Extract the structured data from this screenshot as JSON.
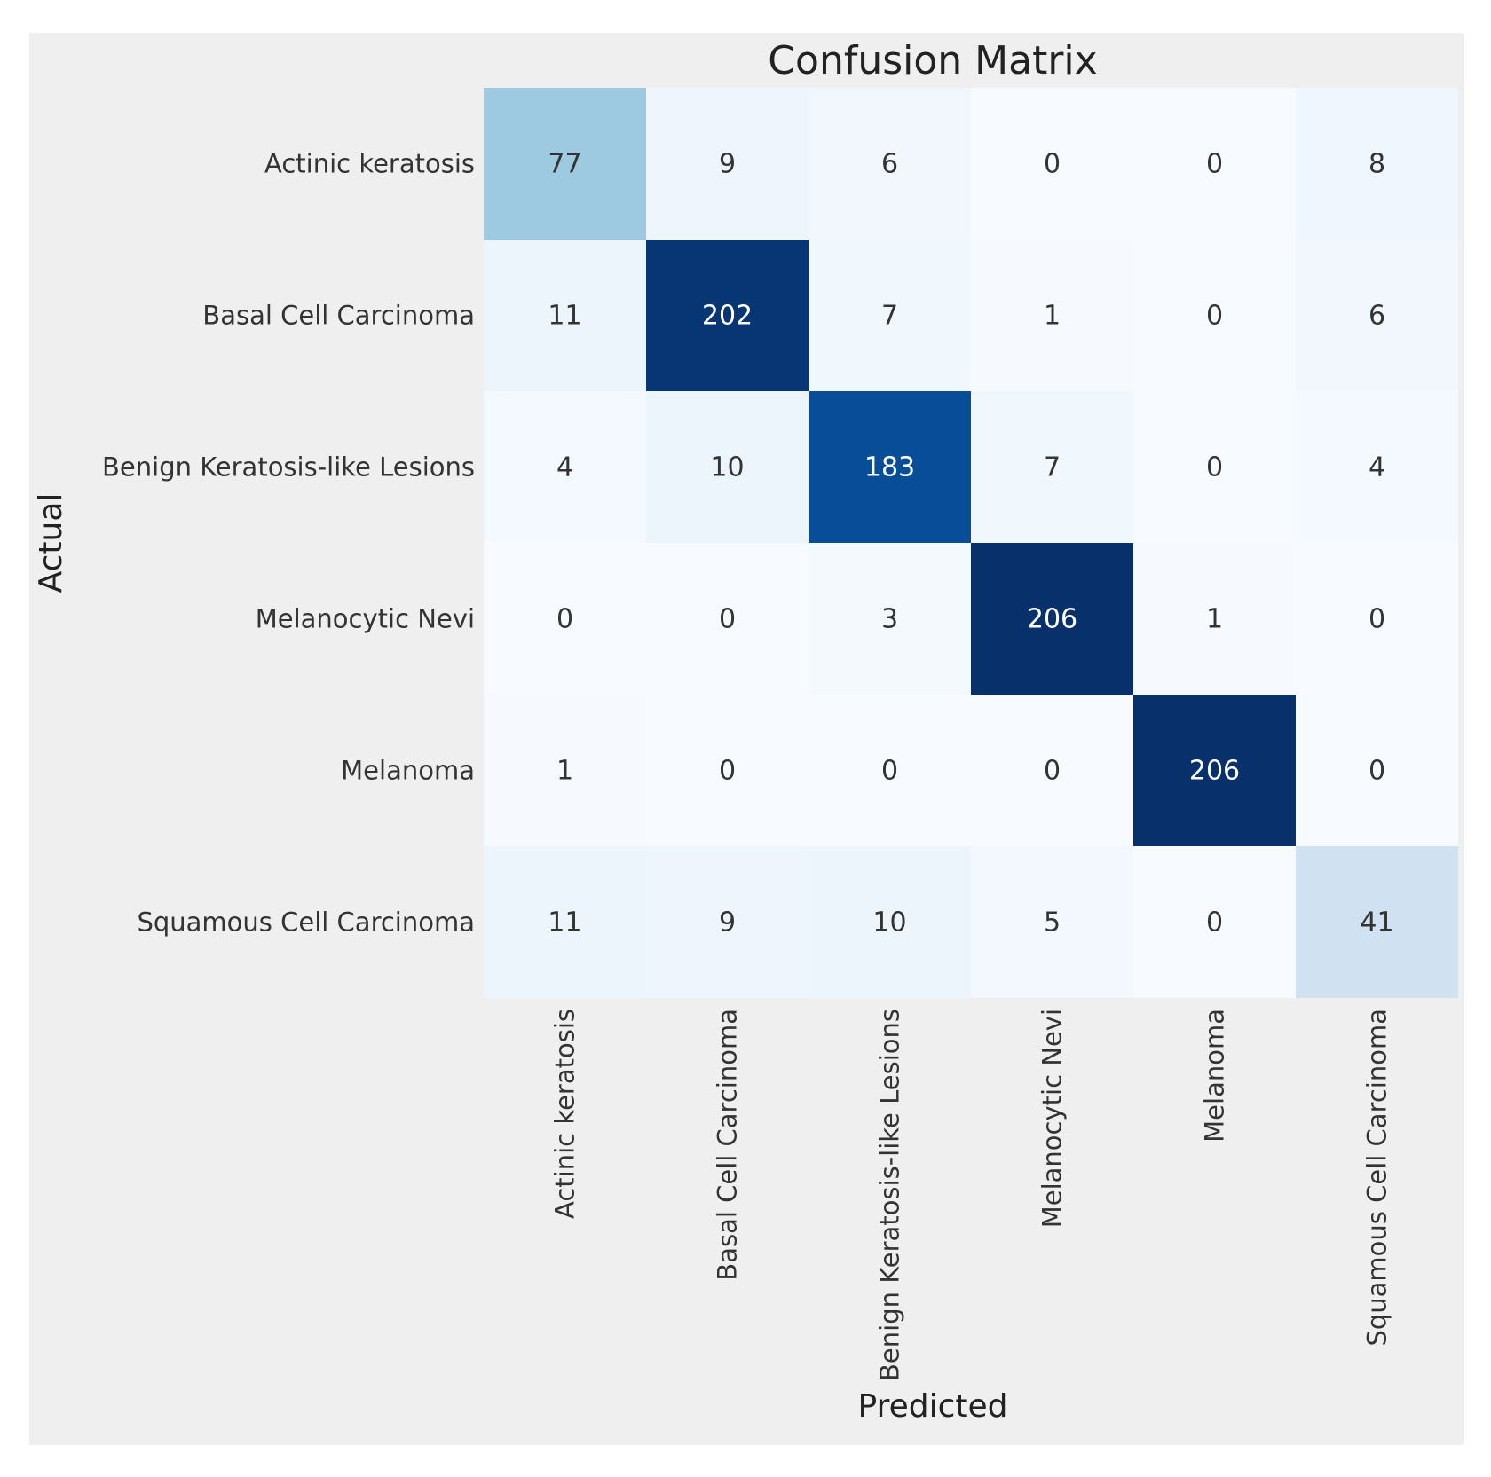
{
  "chart_data": {
    "type": "heatmap",
    "title": "Confusion Matrix",
    "xlabel": "Predicted",
    "ylabel": "Actual",
    "colormap": "Blues",
    "grid": false,
    "legend": "none",
    "x_categories": [
      "Actinic keratosis",
      "Basal Cell Carcinoma",
      "Benign Keratosis-like Lesions",
      "Melanocytic Nevi",
      "Melanoma",
      "Squamous Cell Carcinoma"
    ],
    "y_categories": [
      "Actinic keratosis",
      "Basal Cell Carcinoma",
      "Benign Keratosis-like Lesions",
      "Melanocytic Nevi",
      "Melanoma",
      "Squamous Cell Carcinoma"
    ],
    "values": [
      [
        77,
        9,
        6,
        0,
        0,
        8
      ],
      [
        11,
        202,
        7,
        1,
        0,
        6
      ],
      [
        4,
        10,
        183,
        7,
        0,
        4
      ],
      [
        0,
        0,
        3,
        206,
        1,
        0
      ],
      [
        1,
        0,
        0,
        0,
        206,
        0
      ],
      [
        11,
        9,
        10,
        5,
        0,
        41
      ]
    ],
    "colors": {
      "low": "#f7fbff",
      "high": "#08306b",
      "text_dark": "#333333",
      "text_light": "#ffffff",
      "background": "#efefef"
    }
  }
}
